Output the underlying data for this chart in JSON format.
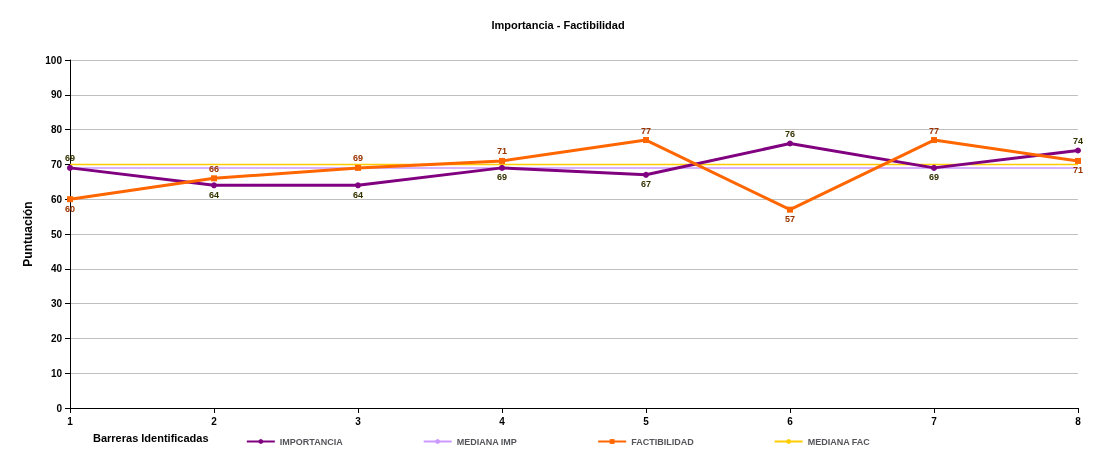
{
  "chart_data": {
    "type": "line",
    "title": "Importancia - Factibilidad",
    "xlabel": "Barreras Identificadas",
    "ylabel": "Puntuación",
    "x": [
      1,
      2,
      3,
      4,
      5,
      6,
      7,
      8
    ],
    "xlim": [
      1,
      8
    ],
    "xticks": [
      1,
      2,
      3,
      4,
      5,
      6,
      7,
      8
    ],
    "ylim": [
      0,
      100
    ],
    "yticks": [
      0,
      10,
      20,
      30,
      40,
      50,
      60,
      70,
      80,
      90,
      100
    ],
    "grid": "y",
    "legend": "bottom",
    "series": [
      {
        "name": "IMPORTANCIA",
        "color": "#800080",
        "values": [
          69,
          64,
          64,
          69,
          67,
          76,
          69,
          74
        ],
        "value_labels": [
          "69",
          "64",
          "64",
          "69",
          "67",
          "76",
          "69",
          "74"
        ],
        "marker": "circle"
      },
      {
        "name": "MEDIANA IMP",
        "color": "#cc99ff",
        "values": [
          69,
          69,
          69,
          69,
          69,
          69,
          69,
          69
        ],
        "marker": "none"
      },
      {
        "name": "FACTIBILIDAD",
        "color": "#ff6600",
        "values": [
          60,
          66,
          69,
          71,
          77,
          57,
          77,
          71
        ],
        "value_labels": [
          "60",
          "66",
          "69",
          "71",
          "77",
          "57",
          "77",
          "71"
        ],
        "marker": "square"
      },
      {
        "name": "MEDIANA FAC",
        "color": "#ffcc00",
        "values": [
          70,
          70,
          70,
          70,
          70,
          70,
          70,
          70
        ],
        "marker": "none"
      }
    ]
  }
}
